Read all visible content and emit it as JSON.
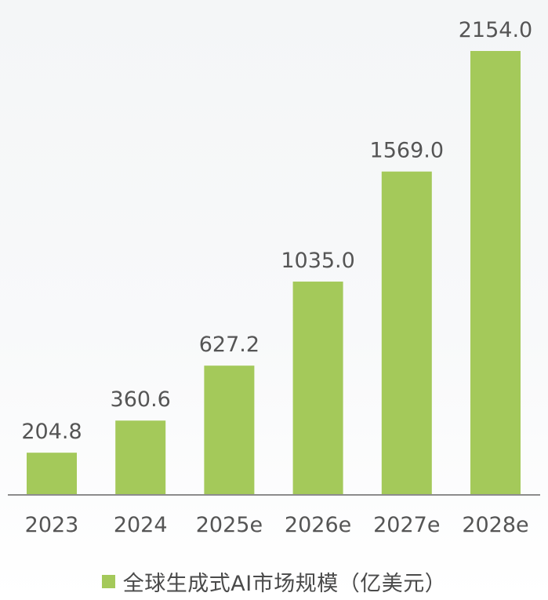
{
  "chart_data": {
    "type": "bar",
    "categories": [
      "2023",
      "2024",
      "2025e",
      "2026e",
      "2027e",
      "2028e"
    ],
    "values": [
      204.8,
      360.6,
      627.2,
      1035.0,
      1569.0,
      2154.0
    ],
    "data_labels": [
      "204.8",
      "360.6",
      "627.2",
      "1035.0",
      "1569.0",
      "2154.0"
    ],
    "series": [
      {
        "name": "全球生成式AI市场规模（亿美元）",
        "values": [
          204.8,
          360.6,
          627.2,
          1035.0,
          1569.0,
          2154.0
        ]
      }
    ],
    "ylim": [
      0,
      2154.0
    ],
    "grid": false,
    "legend_position": "bottom-center",
    "bar_color": "#a4c95a",
    "axis_color": "#8c8c8c",
    "label_color": "#555555"
  }
}
